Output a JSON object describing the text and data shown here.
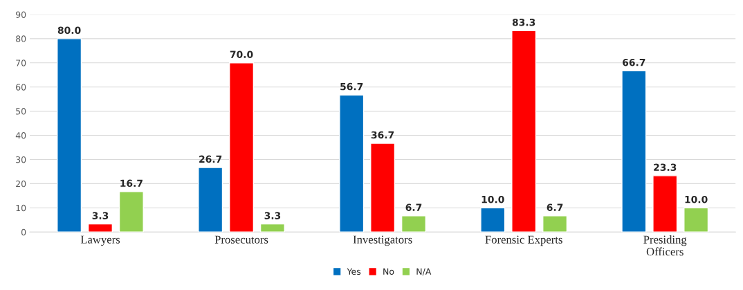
{
  "chart_data": {
    "type": "bar",
    "categories": [
      "Lawyers",
      "Prosecutors",
      "Investigators",
      "Forensic Experts",
      "Presiding\nOfficers"
    ],
    "series": [
      {
        "name": "Yes",
        "color": "#0070c0",
        "values": [
          80.0,
          26.7,
          56.7,
          10.0,
          66.7
        ],
        "value_labels": [
          "80.0",
          "26.7",
          "56.7",
          "10.0",
          "66.7"
        ]
      },
      {
        "name": "No",
        "color": "#ff0000",
        "values": [
          3.3,
          70.0,
          36.7,
          83.3,
          23.3
        ],
        "value_labels": [
          "3.3",
          "70.0",
          "36.7",
          "83.3",
          "23.3"
        ]
      },
      {
        "name": "N/A",
        "color": "#92d050",
        "values": [
          16.7,
          3.3,
          6.7,
          6.7,
          10.0
        ],
        "value_labels": [
          "16.7",
          "3.3",
          "6.7",
          "6.7",
          "10.0"
        ]
      }
    ],
    "ylim": [
      0,
      90
    ],
    "yticks": [
      0,
      10,
      20,
      30,
      40,
      50,
      60,
      70,
      80,
      90
    ],
    "grid": "y",
    "legend": "bottom"
  }
}
